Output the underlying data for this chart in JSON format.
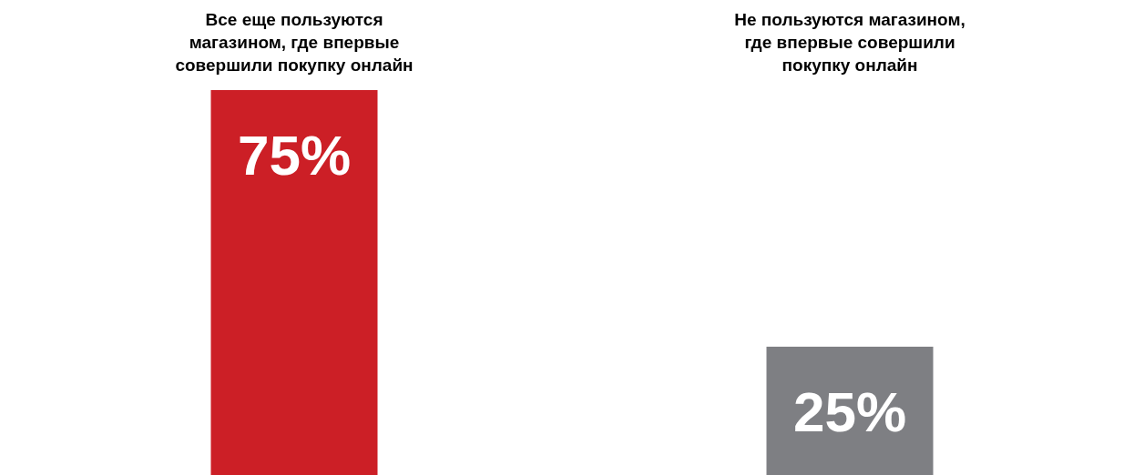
{
  "chart_data": {
    "type": "bar",
    "categories": [
      "Все еще пользуются магазином, где впервые совершили покупку онлайн",
      "Не пользуются магазином, где впервые совершили покупку онлайн"
    ],
    "values": [
      75,
      25
    ],
    "colors": [
      "#cc1f26",
      "#7e7f83"
    ],
    "value_labels": [
      "75%",
      "25%"
    ]
  }
}
